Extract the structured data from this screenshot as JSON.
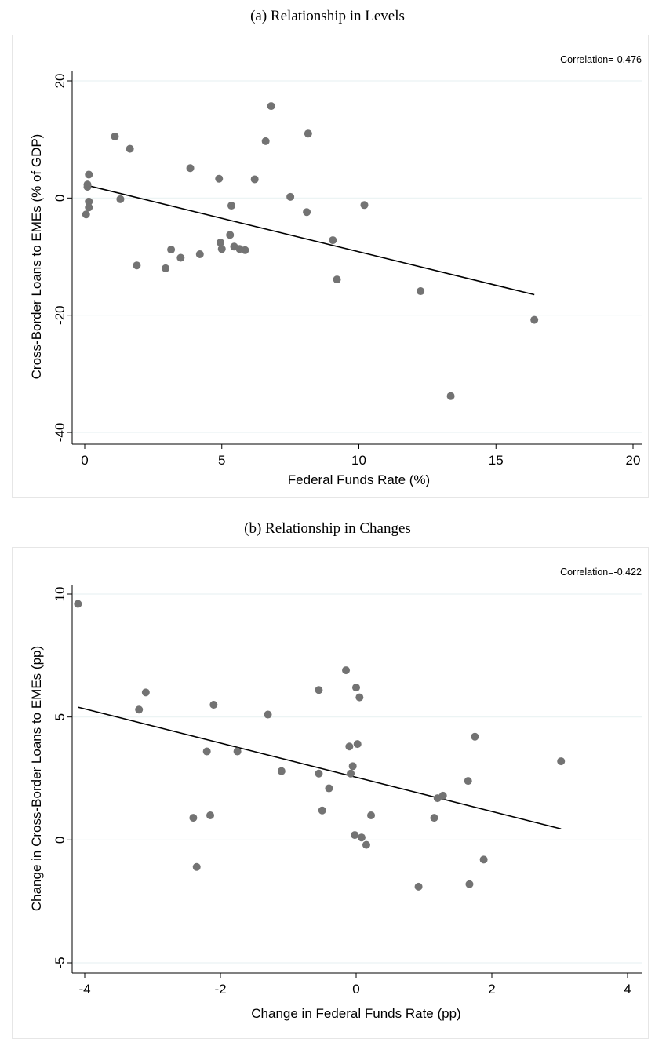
{
  "panels": [
    {
      "title": "(a)   Relationship in Levels"
    },
    {
      "title": "(b)   Relationship in Changes"
    }
  ],
  "chart_data": [
    {
      "type": "scatter",
      "title": "(a)   Relationship in Levels",
      "annotation": "Correlation=-0.476",
      "xlabel": "Federal Funds Rate (%)",
      "ylabel": "Cross-Border Loans to EMEs (% of GDP)",
      "xlim": [
        0,
        20
      ],
      "ylim": [
        -40,
        20
      ],
      "xticks": [
        "0",
        "5",
        "10",
        "15",
        "20"
      ],
      "yticks": [
        "-40",
        "-20",
        "0",
        "20"
      ],
      "grid": true,
      "marker_color": "#737373",
      "x": [
        0.05,
        0.1,
        0.1,
        0.15,
        0.15,
        0.15,
        1.1,
        1.3,
        1.65,
        1.9,
        2.95,
        3.15,
        3.5,
        3.85,
        4.2,
        4.9,
        4.95,
        5.0,
        5.3,
        5.35,
        5.45,
        5.65,
        5.85,
        6.2,
        6.6,
        6.8,
        7.5,
        8.1,
        8.15,
        9.05,
        9.2,
        10.2,
        12.25,
        13.35,
        16.4
      ],
      "y": [
        -2.8,
        1.9,
        2.3,
        4.0,
        -0.6,
        -1.6,
        10.5,
        -0.2,
        8.4,
        -11.5,
        -12.0,
        -8.8,
        -10.2,
        5.1,
        -9.6,
        3.3,
        -7.6,
        -8.7,
        -6.3,
        -1.3,
        -8.3,
        -8.7,
        -8.9,
        3.2,
        9.7,
        15.7,
        0.2,
        -2.4,
        11.0,
        -7.2,
        -13.9,
        -1.2,
        -15.9,
        -33.8,
        -20.8
      ],
      "fit_line": {
        "x": [
          0.05,
          16.4
        ],
        "y": [
          2.2,
          -16.5
        ]
      }
    },
    {
      "type": "scatter",
      "title": "(b)   Relationship in Changes",
      "annotation": "Correlation=-0.422",
      "xlabel": "Change in Federal Funds Rate (pp)",
      "ylabel": "Change in Cross-Border Loans to EMEs (pp)",
      "xlim": [
        -4,
        4
      ],
      "ylim": [
        -5,
        10
      ],
      "xticks": [
        "-4",
        "-2",
        "0",
        "2",
        "4"
      ],
      "yticks": [
        "-5",
        "0",
        "5",
        "10"
      ],
      "grid": true,
      "marker_color": "#737373",
      "x": [
        -4.1,
        -3.2,
        -3.1,
        -2.4,
        -2.35,
        -2.2,
        -2.15,
        -2.1,
        -1.75,
        -1.3,
        -1.1,
        -0.55,
        -0.55,
        -0.5,
        -0.4,
        -0.15,
        -0.1,
        -0.08,
        -0.05,
        -0.02,
        0.0,
        0.02,
        0.05,
        0.08,
        0.15,
        0.22,
        0.92,
        1.15,
        1.2,
        1.28,
        1.65,
        1.67,
        1.75,
        1.88,
        3.02
      ],
      "y": [
        9.6,
        5.3,
        6.0,
        0.9,
        -1.1,
        3.6,
        1.0,
        5.5,
        3.6,
        5.1,
        2.8,
        6.1,
        2.7,
        1.2,
        2.1,
        6.9,
        3.8,
        2.7,
        3.0,
        0.2,
        6.2,
        3.9,
        5.8,
        0.1,
        -0.2,
        1.0,
        -1.9,
        0.9,
        1.7,
        1.8,
        2.4,
        -1.8,
        4.2,
        -0.8,
        3.2
      ],
      "fit_line": {
        "x": [
          -4.1,
          3.02
        ],
        "y": [
          5.4,
          0.45
        ]
      }
    }
  ]
}
